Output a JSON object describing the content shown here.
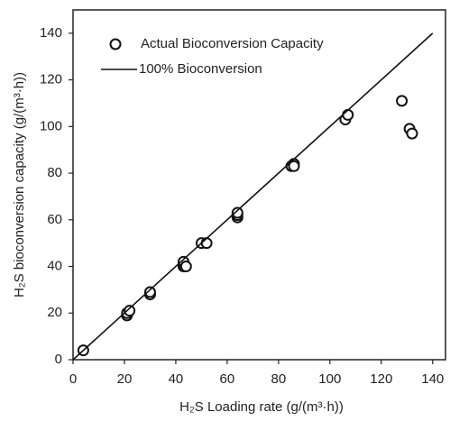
{
  "chart_data": {
    "type": "scatter",
    "x_label": "H₂S Loading rate (g/(m³·h))",
    "y_label": "H₂S bioconversion capacity (g/(m³·h))",
    "xlim": [
      0,
      145
    ],
    "ylim": [
      0,
      150
    ],
    "xticks": [
      0,
      20,
      40,
      60,
      80,
      100,
      120,
      140
    ],
    "yticks": [
      0,
      20,
      40,
      60,
      80,
      100,
      120,
      140
    ],
    "grid": false,
    "legend": "upper left",
    "series": [
      {
        "name": "Actual Bioconversion Capacity",
        "mode": "markers",
        "color": "#111111",
        "x": [
          4,
          21,
          21,
          22,
          30,
          30,
          43,
          43,
          43,
          44,
          50,
          52,
          64,
          64,
          64,
          85,
          86,
          86,
          106,
          107,
          128,
          131,
          132
        ],
        "values": [
          4,
          19,
          20,
          21,
          28,
          29,
          40,
          41,
          42,
          40,
          50,
          50,
          61,
          62,
          63,
          83,
          84,
          83,
          103,
          105,
          111,
          99,
          97
        ]
      },
      {
        "name": "100% Bioconversion",
        "mode": "line",
        "color": "#111111",
        "x": [
          0,
          140
        ],
        "values": [
          0,
          140
        ]
      }
    ]
  }
}
